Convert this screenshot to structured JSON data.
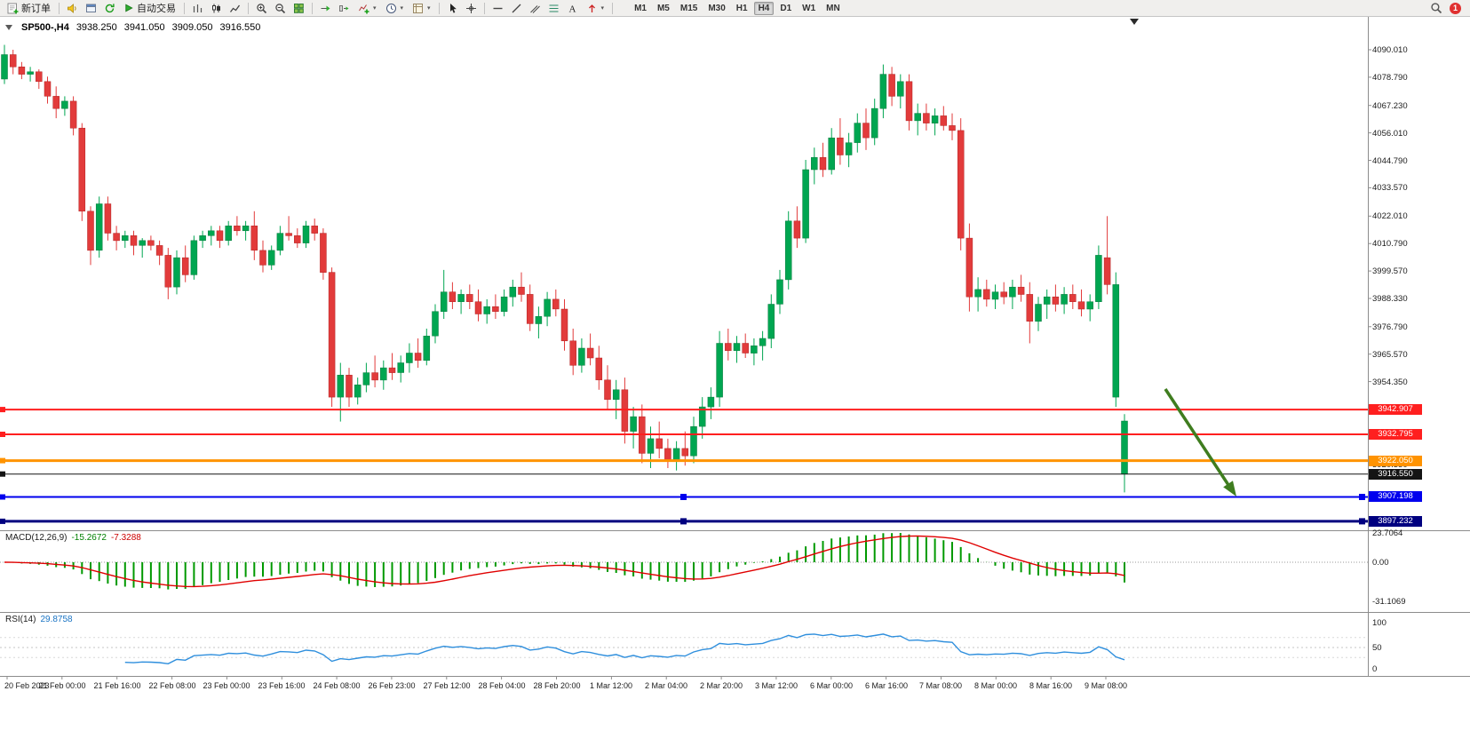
{
  "toolbar": {
    "new_order": "新订单",
    "auto_trading": "自动交易",
    "timeframes": [
      "M1",
      "M5",
      "M15",
      "M30",
      "H1",
      "H4",
      "D1",
      "W1",
      "MN"
    ],
    "active_timeframe": "H4",
    "notification_count": "1"
  },
  "chart": {
    "header": "SP500-,H4",
    "open": "3938.250",
    "high": "3941.050",
    "low": "3909.050",
    "close": "3916.550"
  },
  "price_axis": {
    "labels": [
      4090.01,
      4078.79,
      4067.23,
      4056.01,
      4044.79,
      4033.57,
      4022.01,
      4010.79,
      3999.57,
      3988.33,
      3976.79,
      3965.57,
      3954.35,
      3920.35
    ]
  },
  "horizontal_lines": [
    {
      "name": "resistance-line-1",
      "price": 3942.907,
      "label": "3942.907",
      "color": "#ff1f1f",
      "thickness": 2,
      "handles": false
    },
    {
      "name": "resistance-line-2",
      "price": 3932.795,
      "label": "3932.795",
      "color": "#ff1f1f",
      "thickness": 2,
      "handles": false
    },
    {
      "name": "orange-level-line",
      "price": 3922.05,
      "label": "3922.050",
      "color": "#ff9300",
      "thickness": 3,
      "handles": false
    },
    {
      "name": "current-price-line",
      "price": 3916.55,
      "label": "3916.550",
      "color": "#141414",
      "thickness": 1,
      "handles": false
    },
    {
      "name": "blue-support-line",
      "price": 3907.198,
      "label": "3907.198",
      "color": "#0000ee",
      "thickness": 2,
      "handles": true
    },
    {
      "name": "navy-support-line",
      "price": 3897.232,
      "label": "3897.232",
      "color": "#000080",
      "thickness": 3,
      "handles": true
    }
  ],
  "annotations": {
    "green_arrow": {
      "color": "#3f7d1f",
      "from": [
        1312,
        419
      ],
      "to": [
        1392,
        540
      ]
    }
  },
  "macd_panel": {
    "title": "MACD(12,26,9)",
    "value": "-15.2672",
    "signal_value": "-7.3288",
    "axis_labels": [
      "23.7064",
      "0.00",
      "-31.1069"
    ]
  },
  "rsi_panel": {
    "title": "RSI(14)",
    "value": "29.8758",
    "axis_labels": [
      "100",
      "50",
      "0"
    ]
  },
  "time_axis": [
    "20 Feb 2023",
    "21 Feb 00:00",
    "21 Feb 16:00",
    "22 Feb 08:00",
    "23 Feb 00:00",
    "23 Feb 16:00",
    "24 Feb 08:00",
    "26 Feb 23:00",
    "27 Feb 12:00",
    "28 Feb 04:00",
    "28 Feb 20:00",
    "1 Mar 12:00",
    "2 Mar 04:00",
    "2 Mar 20:00",
    "3 Mar 12:00",
    "6 Mar 00:00",
    "6 Mar 16:00",
    "7 Mar 08:00",
    "8 Mar 00:00",
    "8 Mar 16:00",
    "9 Mar 08:00"
  ],
  "chart_data": {
    "type": "candlestick",
    "symbol": "SP500-",
    "timeframe": "H4",
    "current_bar": {
      "open": 3938.25,
      "high": 3941.05,
      "low": 3909.05,
      "close": 3916.55
    },
    "y_range": [
      3890,
      4097
    ],
    "bull_color": "#00a651",
    "bear_color": "#e23b3b",
    "candles": [
      [
        4078,
        4092,
        4076,
        4088
      ],
      [
        4088,
        4090,
        4080,
        4083
      ],
      [
        4083,
        4085,
        4078,
        4080
      ],
      [
        4080,
        4083,
        4077,
        4081
      ],
      [
        4081,
        4082,
        4074,
        4077
      ],
      [
        4077,
        4079,
        4068,
        4071
      ],
      [
        4071,
        4075,
        4062,
        4066
      ],
      [
        4066,
        4071,
        4063,
        4069
      ],
      [
        4069,
        4071,
        4055,
        4058
      ],
      [
        4058,
        4060,
        4020,
        4024
      ],
      [
        4024,
        4026,
        4002,
        4008
      ],
      [
        4008,
        4030,
        4005,
        4027
      ],
      [
        4027,
        4030,
        4012,
        4015
      ],
      [
        4015,
        4018,
        4008,
        4012
      ],
      [
        4012,
        4016,
        4009,
        4014
      ],
      [
        4014,
        4016,
        4006,
        4010
      ],
      [
        4010,
        4013,
        4005,
        4012
      ],
      [
        4012,
        4014,
        4008,
        4010
      ],
      [
        4010,
        4012,
        4002,
        4006
      ],
      [
        4006,
        4009,
        3988,
        3993
      ],
      [
        3993,
        4008,
        3990,
        4005
      ],
      [
        4005,
        4010,
        3995,
        3998
      ],
      [
        3998,
        4014,
        3996,
        4012
      ],
      [
        4012,
        4016,
        4009,
        4014
      ],
      [
        4014,
        4018,
        4010,
        4016
      ],
      [
        4016,
        4018,
        4009,
        4012
      ],
      [
        4012,
        4020,
        4010,
        4018
      ],
      [
        4018,
        4022,
        4014,
        4016
      ],
      [
        4016,
        4020,
        4012,
        4018
      ],
      [
        4018,
        4024,
        4004,
        4008
      ],
      [
        4008,
        4012,
        3999,
        4002
      ],
      [
        4002,
        4010,
        4000,
        4008
      ],
      [
        4008,
        4018,
        4006,
        4015
      ],
      [
        4015,
        4022,
        4012,
        4014
      ],
      [
        4014,
        4017,
        4009,
        4011
      ],
      [
        4011,
        4020,
        4009,
        4018
      ],
      [
        4018,
        4021,
        4012,
        4015
      ],
      [
        4015,
        4017,
        3996,
        3999
      ],
      [
        3999,
        4001,
        3944,
        3948
      ],
      [
        3948,
        3962,
        3938,
        3957
      ],
      [
        3957,
        3960,
        3944,
        3948
      ],
      [
        3948,
        3956,
        3945,
        3953
      ],
      [
        3953,
        3962,
        3950,
        3958
      ],
      [
        3958,
        3965,
        3952,
        3955
      ],
      [
        3955,
        3963,
        3951,
        3960
      ],
      [
        3960,
        3966,
        3955,
        3958
      ],
      [
        3958,
        3965,
        3954,
        3962
      ],
      [
        3962,
        3970,
        3958,
        3966
      ],
      [
        3966,
        3972,
        3960,
        3963
      ],
      [
        3963,
        3976,
        3961,
        3973
      ],
      [
        3973,
        3986,
        3970,
        3983
      ],
      [
        3983,
        4000,
        3980,
        3991
      ],
      [
        3991,
        3995,
        3984,
        3987
      ],
      [
        3987,
        3992,
        3982,
        3990
      ],
      [
        3990,
        3994,
        3984,
        3987
      ],
      [
        3987,
        3992,
        3979,
        3982
      ],
      [
        3982,
        3988,
        3978,
        3985
      ],
      [
        3985,
        3990,
        3980,
        3983
      ],
      [
        3983,
        3992,
        3981,
        3989
      ],
      [
        3989,
        3996,
        3985,
        3993
      ],
      [
        3993,
        3999,
        3987,
        3990
      ],
      [
        3990,
        3994,
        3975,
        3978
      ],
      [
        3978,
        3985,
        3972,
        3981
      ],
      [
        3981,
        3991,
        3977,
        3988
      ],
      [
        3988,
        3992,
        3981,
        3984
      ],
      [
        3984,
        3988,
        3967,
        3971
      ],
      [
        3971,
        3976,
        3957,
        3961
      ],
      [
        3961,
        3972,
        3958,
        3968
      ],
      [
        3968,
        3974,
        3961,
        3964
      ],
      [
        3964,
        3969,
        3951,
        3955
      ],
      [
        3955,
        3961,
        3943,
        3947
      ],
      [
        3947,
        3955,
        3939,
        3951
      ],
      [
        3951,
        3956,
        3929,
        3934
      ],
      [
        3934,
        3944,
        3927,
        3940
      ],
      [
        3940,
        3945,
        3921,
        3925
      ],
      [
        3925,
        3936,
        3919,
        3931
      ],
      [
        3931,
        3938,
        3923,
        3927
      ],
      [
        3927,
        3931,
        3919,
        3922
      ],
      [
        3922,
        3930,
        3918,
        3927
      ],
      [
        3927,
        3934,
        3920,
        3924
      ],
      [
        3924,
        3940,
        3921,
        3936
      ],
      [
        3936,
        3948,
        3931,
        3944
      ],
      [
        3944,
        3952,
        3939,
        3948
      ],
      [
        3948,
        3975,
        3944,
        3970
      ],
      [
        3970,
        3976,
        3963,
        3967
      ],
      [
        3967,
        3973,
        3962,
        3970
      ],
      [
        3970,
        3974,
        3964,
        3966
      ],
      [
        3966,
        3972,
        3961,
        3969
      ],
      [
        3969,
        3975,
        3963,
        3972
      ],
      [
        3972,
        3990,
        3968,
        3986
      ],
      [
        3986,
        4000,
        3982,
        3996
      ],
      [
        3996,
        4024,
        3992,
        4020
      ],
      [
        4020,
        4026,
        4009,
        4013
      ],
      [
        4013,
        4045,
        4011,
        4041
      ],
      [
        4041,
        4050,
        4035,
        4046
      ],
      [
        4046,
        4052,
        4038,
        4041
      ],
      [
        4041,
        4058,
        4039,
        4054
      ],
      [
        4054,
        4062,
        4043,
        4047
      ],
      [
        4047,
        4056,
        4042,
        4052
      ],
      [
        4052,
        4064,
        4048,
        4060
      ],
      [
        4060,
        4066,
        4049,
        4054
      ],
      [
        4054,
        4070,
        4051,
        4066
      ],
      [
        4066,
        4084,
        4062,
        4080
      ],
      [
        4080,
        4083,
        4067,
        4071
      ],
      [
        4071,
        4080,
        4066,
        4077
      ],
      [
        4077,
        4080,
        4057,
        4061
      ],
      [
        4061,
        4068,
        4055,
        4064
      ],
      [
        4064,
        4068,
        4057,
        4060
      ],
      [
        4060,
        4066,
        4055,
        4063
      ],
      [
        4063,
        4067,
        4057,
        4059
      ],
      [
        4059,
        4064,
        4053,
        4057
      ],
      [
        4057,
        4062,
        4008,
        4013
      ],
      [
        4013,
        4019,
        3983,
        3989
      ],
      [
        3989,
        3997,
        3983,
        3992
      ],
      [
        3992,
        3996,
        3985,
        3988
      ],
      [
        3988,
        3994,
        3984,
        3991
      ],
      [
        3991,
        3995,
        3986,
        3989
      ],
      [
        3989,
        3996,
        3984,
        3993
      ],
      [
        3993,
        3998,
        3987,
        3990
      ],
      [
        3990,
        3995,
        3970,
        3979
      ],
      [
        3979,
        3989,
        3975,
        3986
      ],
      [
        3986,
        3992,
        3980,
        3989
      ],
      [
        3989,
        3994,
        3983,
        3986
      ],
      [
        3986,
        3993,
        3982,
        3990
      ],
      [
        3990,
        3994,
        3984,
        3987
      ],
      [
        3987,
        3992,
        3981,
        3984
      ],
      [
        3984,
        3990,
        3979,
        3987
      ],
      [
        3987,
        4010,
        3984,
        4006
      ],
      [
        4005,
        4022,
        3990,
        3994
      ],
      [
        3994,
        3999,
        3944,
        3948,
        1
      ],
      [
        3938.25,
        3941.05,
        3909.05,
        3916.55,
        1
      ]
    ],
    "indicators": [
      {
        "type": "MACD",
        "params": [
          12,
          26,
          9
        ],
        "current_macd": -15.2672,
        "current_signal": -7.3288,
        "histogram_color": "#009900",
        "signal_color": "#e00000",
        "axis": [
          23.7064,
          0.0,
          -31.1069
        ]
      },
      {
        "type": "RSI",
        "params": [
          14
        ],
        "current": 29.8758,
        "color": "#2f8fdd",
        "levels": [
          30,
          50,
          70
        ],
        "axis": [
          100,
          50,
          0
        ]
      }
    ]
  }
}
